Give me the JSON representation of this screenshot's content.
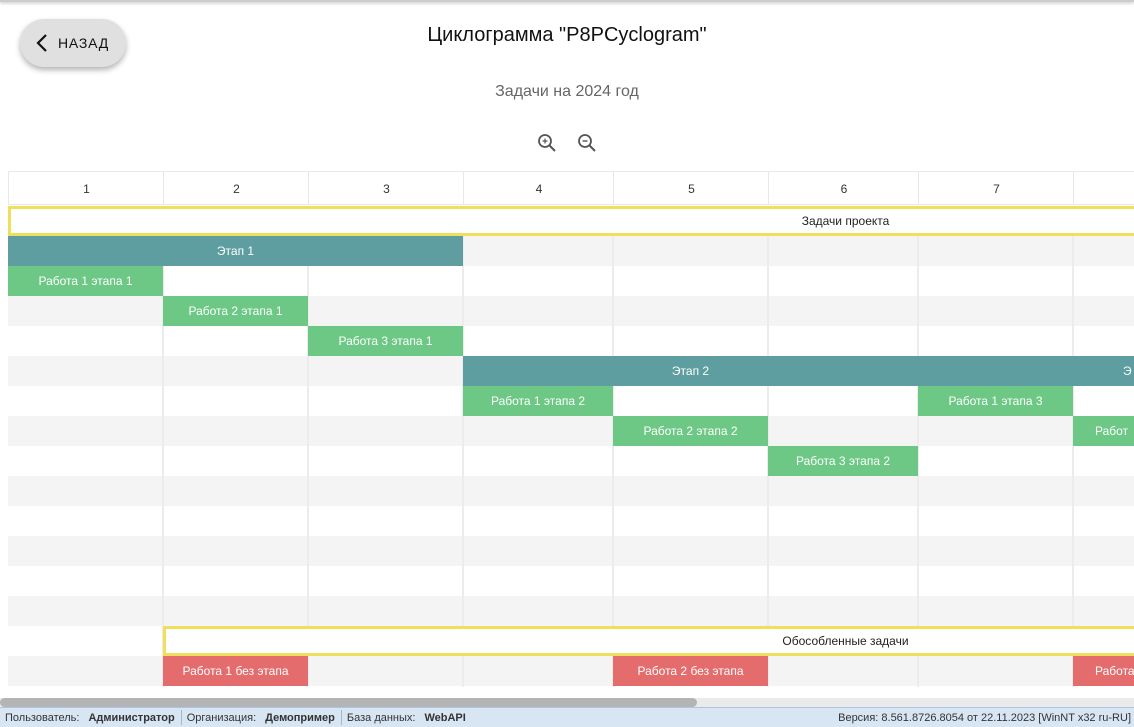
{
  "header": {
    "back_label": "НАЗАД",
    "title": "Циклограмма \"P8PCyclogram\"",
    "subtitle": "Задачи на 2024 год",
    "zoom_in_icon": "zoom-in-icon",
    "zoom_out_icon": "zoom-out-icon"
  },
  "columns": [
    "1",
    "2",
    "3",
    "4",
    "5",
    "6",
    "7",
    ""
  ],
  "colors": {
    "group_border": "#f0df5a",
    "stage": "#5f9ea0",
    "task": "#6cc884",
    "free_task": "#e46c6c"
  },
  "bars": [
    {
      "label": "Задачи проекта",
      "type": "group",
      "row": 0,
      "col_start": 1,
      "col_end": 12
    },
    {
      "label": "Этап 1",
      "type": "stage",
      "row": 1,
      "col_start": 1,
      "col_end": 4
    },
    {
      "label": "Работа 1 этапа 1",
      "type": "task",
      "row": 2,
      "col_start": 1,
      "col_end": 2
    },
    {
      "label": "Работа 2 этапа 1",
      "type": "task",
      "row": 3,
      "col_start": 2,
      "col_end": 3
    },
    {
      "label": "Работа 3 этапа 1",
      "type": "task",
      "row": 4,
      "col_start": 3,
      "col_end": 4
    },
    {
      "label": "Этап 2",
      "type": "stage",
      "row": 5,
      "col_start": 4,
      "col_end": 7
    },
    {
      "label": "Э",
      "type": "stage",
      "row": 5,
      "col_start": 7,
      "col_end": 10,
      "clipped": true
    },
    {
      "label": "Работа 1 этапа 2",
      "type": "task",
      "row": 6,
      "col_start": 4,
      "col_end": 5
    },
    {
      "label": "Работа 1 этапа 3",
      "type": "task",
      "row": 6,
      "col_start": 7,
      "col_end": 8
    },
    {
      "label": "Работа 2 этапа 2",
      "type": "task",
      "row": 7,
      "col_start": 5,
      "col_end": 6
    },
    {
      "label": "Работ",
      "type": "task",
      "row": 7,
      "col_start": 8,
      "col_end": 9,
      "clipped": true
    },
    {
      "label": "Работа 3 этапа 2",
      "type": "task",
      "row": 8,
      "col_start": 6,
      "col_end": 7
    },
    {
      "label": "Обособленные задачи",
      "type": "group",
      "row": 14,
      "col_start": 2,
      "col_end": 11
    },
    {
      "label": "Работа 1 без этапа",
      "type": "free",
      "row": 15,
      "col_start": 2,
      "col_end": 3
    },
    {
      "label": "Работа 2 без этапа",
      "type": "free",
      "row": 15,
      "col_start": 5,
      "col_end": 6
    },
    {
      "label": "Работа",
      "type": "free",
      "row": 15,
      "col_start": 8,
      "col_end": 9,
      "clipped": true
    }
  ],
  "status": {
    "user_label": "Пользователь:",
    "user": "Администратор",
    "org_label": "Организация:",
    "org": "Демопример",
    "db_label": "База данных:",
    "db": "WebAPI",
    "version": "Версия: 8.561.8726.8054 от 22.11.2023 [WinNT x32 ru-RU]"
  }
}
